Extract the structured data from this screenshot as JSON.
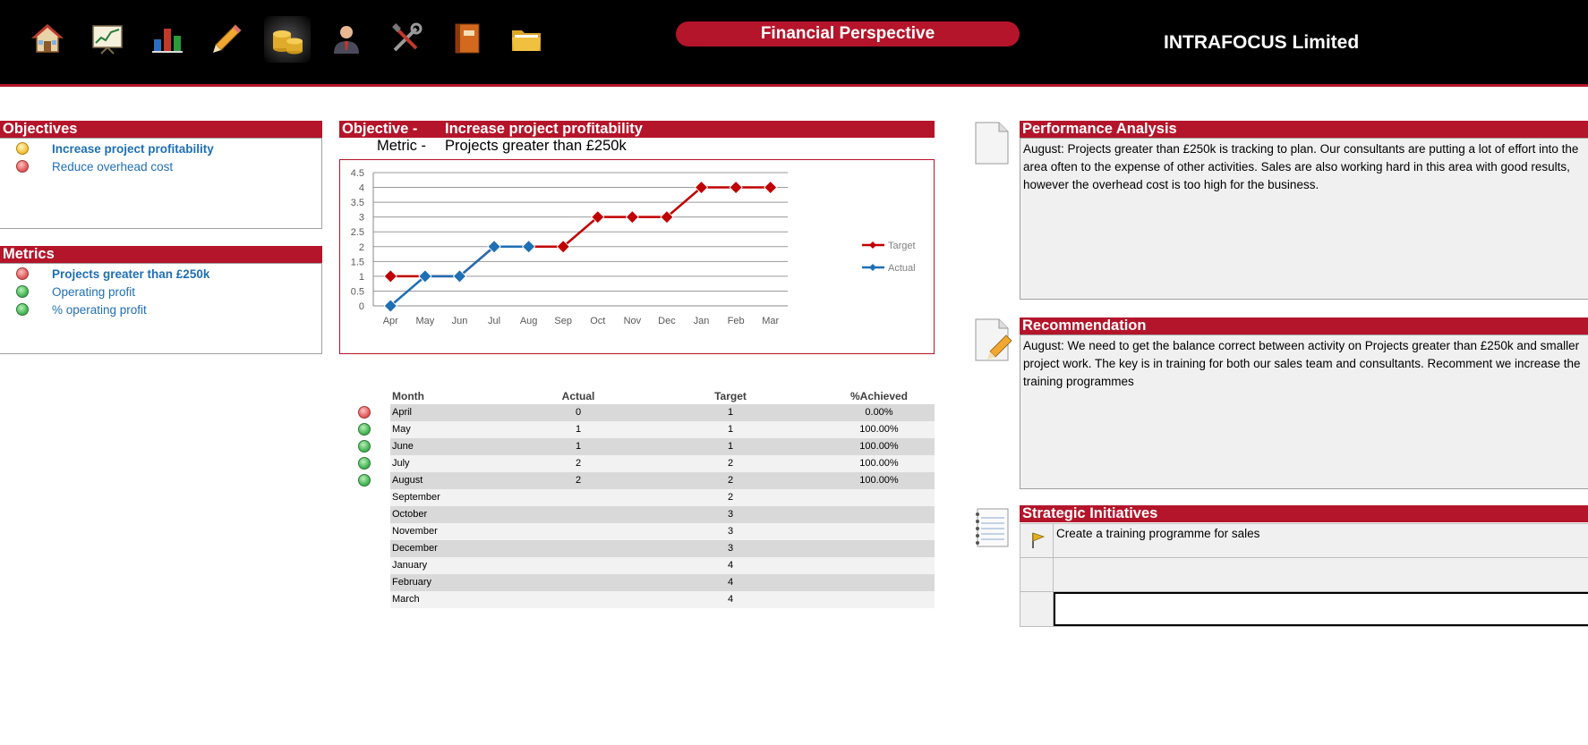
{
  "header": {
    "title": "Financial Perspective",
    "company": "INTRAFOCUS Limited",
    "toolbar": [
      "home-icon",
      "presentation-chart-icon",
      "bar-chart-icon",
      "pencil-icon",
      "coins-icon",
      "user-icon",
      "tools-icon",
      "book-icon",
      "folder-icon"
    ],
    "active_tool": "coins-icon"
  },
  "objectives": {
    "title": "Objectives",
    "items": [
      {
        "label": "Increase project profitability",
        "status": "yellow",
        "selected": true
      },
      {
        "label": "Reduce overhead cost",
        "status": "red",
        "selected": false
      }
    ]
  },
  "metrics": {
    "title": "Metrics",
    "items": [
      {
        "label": "Projects greater than £250k",
        "status": "red",
        "selected": true
      },
      {
        "label": "Operating profit",
        "status": "green",
        "selected": false
      },
      {
        "label": "% operating profit",
        "status": "green",
        "selected": false
      }
    ]
  },
  "objective_panel": {
    "objective_label": "Objective -",
    "objective_value": "Increase project profitability",
    "metric_label": "Metric -",
    "metric_value": "Projects greater than £250k"
  },
  "chart_data": {
    "type": "line",
    "categories": [
      "Apr",
      "May",
      "Jun",
      "Jul",
      "Aug",
      "Sep",
      "Oct",
      "Nov",
      "Dec",
      "Jan",
      "Feb",
      "Mar"
    ],
    "series": [
      {
        "name": "Target",
        "values": [
          1,
          1,
          1,
          2,
          2,
          2,
          3,
          3,
          3,
          4,
          4,
          4
        ],
        "color": "#c00000"
      },
      {
        "name": "Actual",
        "values": [
          0,
          1,
          1,
          2,
          2,
          null,
          null,
          null,
          null,
          null,
          null,
          null
        ],
        "color": "#1f6fb5"
      }
    ],
    "yticks": [
      "0",
      "0.5",
      "1",
      "1.5",
      "2",
      "2.5",
      "3",
      "3.5",
      "4",
      "4.5"
    ],
    "ylim": [
      0,
      4.5
    ],
    "grid": true,
    "legend": "right"
  },
  "table": {
    "headers": {
      "month": "Month",
      "actual": "Actual",
      "target": "Target",
      "achieved": "%Achieved"
    },
    "rows": [
      {
        "month": "April",
        "actual": "0",
        "target": "1",
        "achieved": "0.00%",
        "status": "red"
      },
      {
        "month": "May",
        "actual": "1",
        "target": "1",
        "achieved": "100.00%",
        "status": "green"
      },
      {
        "month": "June",
        "actual": "1",
        "target": "1",
        "achieved": "100.00%",
        "status": "green"
      },
      {
        "month": "July",
        "actual": "2",
        "target": "2",
        "achieved": "100.00%",
        "status": "green"
      },
      {
        "month": "August",
        "actual": "2",
        "target": "2",
        "achieved": "100.00%",
        "status": "green"
      },
      {
        "month": "September",
        "actual": "",
        "target": "2",
        "achieved": "",
        "status": ""
      },
      {
        "month": "October",
        "actual": "",
        "target": "3",
        "achieved": "",
        "status": ""
      },
      {
        "month": "November",
        "actual": "",
        "target": "3",
        "achieved": "",
        "status": ""
      },
      {
        "month": "December",
        "actual": "",
        "target": "3",
        "achieved": "",
        "status": ""
      },
      {
        "month": "January",
        "actual": "",
        "target": "4",
        "achieved": "",
        "status": ""
      },
      {
        "month": "February",
        "actual": "",
        "target": "4",
        "achieved": "",
        "status": ""
      },
      {
        "month": "March",
        "actual": "",
        "target": "4",
        "achieved": "",
        "status": ""
      }
    ]
  },
  "performance_analysis": {
    "title": "Performance Analysis",
    "text": "August: Projects greater than £250k is tracking to plan.  Our consultants are putting a lot of effort into the area often to the expense of other activities.  Sales are also working hard in this area with good results, however the overhead cost is too high for the business."
  },
  "recommendation": {
    "title": "Recommendation",
    "text": "August:  We need to get the balance correct between activity on Projects greater than £250k and smaller project work.  The key is in training for both our sales team and consultants.  Recomment we increase the training programmes"
  },
  "strategic_initiatives": {
    "title": "Strategic Initiatives",
    "items": [
      "Create a training programme for sales",
      "",
      ""
    ]
  }
}
